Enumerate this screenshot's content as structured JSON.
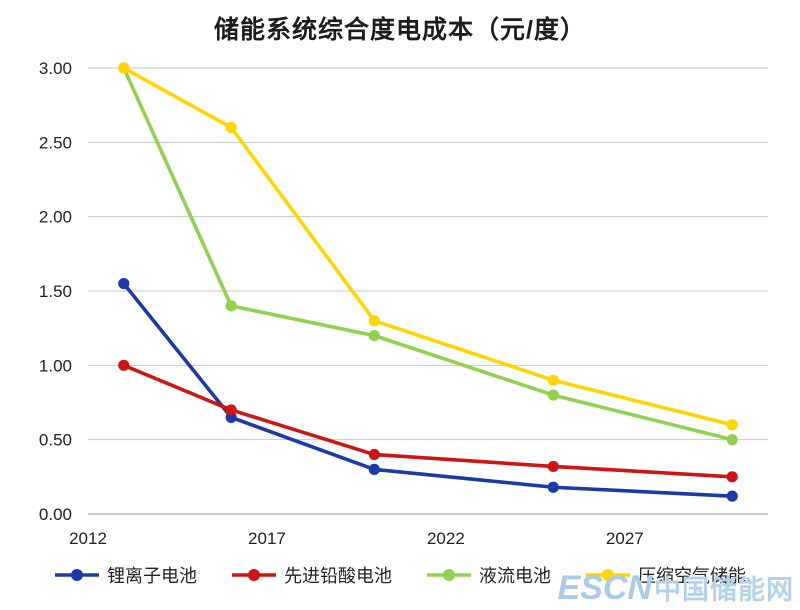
{
  "title": "储能系统综合度电成本（元/度）",
  "watermark": {
    "text_en": "ESCN",
    "text_cn": "中国储能网"
  },
  "chart_data": {
    "type": "line",
    "title": "储能系统综合度电成本（元/度）",
    "xlabel": "",
    "ylabel": "",
    "x": [
      2013,
      2016,
      2020,
      2025,
      2030
    ],
    "series": [
      {
        "name": "锂离子电池",
        "color": "#1b3aa5",
        "values": [
          1.55,
          0.65,
          0.3,
          0.18,
          0.12
        ]
      },
      {
        "name": "先进铅酸电池",
        "color": "#cc1616",
        "values": [
          1.0,
          0.7,
          0.4,
          0.32,
          0.25
        ]
      },
      {
        "name": "液流电池",
        "color": "#92d050",
        "values": [
          3.0,
          1.4,
          1.2,
          0.8,
          0.5
        ]
      },
      {
        "name": "压缩空气储能",
        "color": "#ffd400",
        "values": [
          3.0,
          2.6,
          1.3,
          0.9,
          0.6
        ]
      }
    ],
    "xlim": [
      2012,
      2031
    ],
    "ylim": [
      0,
      3
    ],
    "x_ticks": [
      2012,
      2017,
      2022,
      2027
    ],
    "y_ticks": [
      0.0,
      0.5,
      1.0,
      1.5,
      2.0,
      2.5,
      3.0
    ],
    "grid": true,
    "grid_color": "#c8c8c8",
    "axis_color": "#9a9a9a",
    "legend_position": "bottom"
  }
}
